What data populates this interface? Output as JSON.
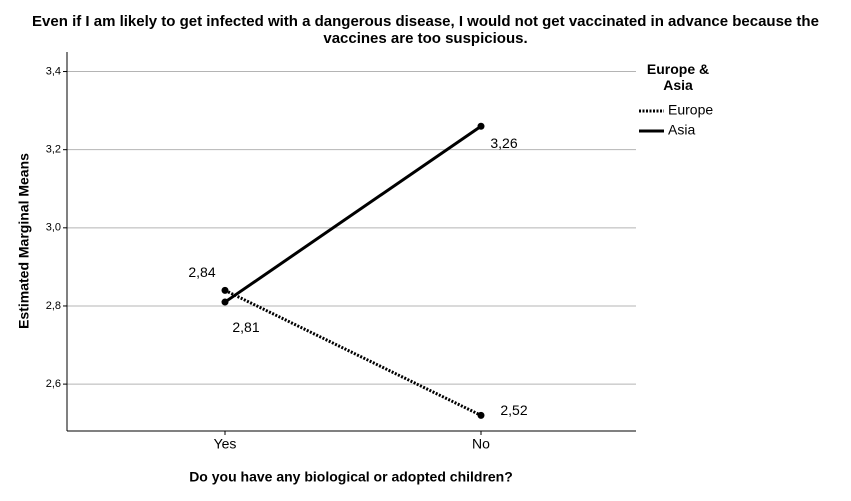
{
  "chart_data": {
    "type": "line",
    "title": "Even if I am likely to get infected with a dangerous disease, I would not get vaccinated in advance because the vaccines are too suspicious.",
    "x_label": "Do you have any biological or adopted children?",
    "y_label": "Estimated Marginal Means",
    "legend_title": "Europe & Asia",
    "categories": [
      "Yes",
      "No"
    ],
    "series": [
      {
        "name": "Europe",
        "color": "#000000",
        "style": "dotted",
        "values": [
          2.84,
          2.52
        ],
        "value_labels": [
          "2,84",
          "2,52"
        ]
      },
      {
        "name": "Asia",
        "color": "#000000",
        "style": "solid",
        "values": [
          2.81,
          3.26
        ],
        "value_labels": [
          "2,81",
          "3,26"
        ]
      }
    ],
    "ylim": [
      2.48,
      3.45
    ],
    "yticks": [
      {
        "value": 2.6,
        "label": "2,6"
      },
      {
        "value": 2.8,
        "label": "2,8"
      },
      {
        "value": 3.0,
        "label": "3,0"
      },
      {
        "value": 3.2,
        "label": "3,2"
      },
      {
        "value": 3.4,
        "label": "3,4"
      }
    ],
    "grid": true
  }
}
